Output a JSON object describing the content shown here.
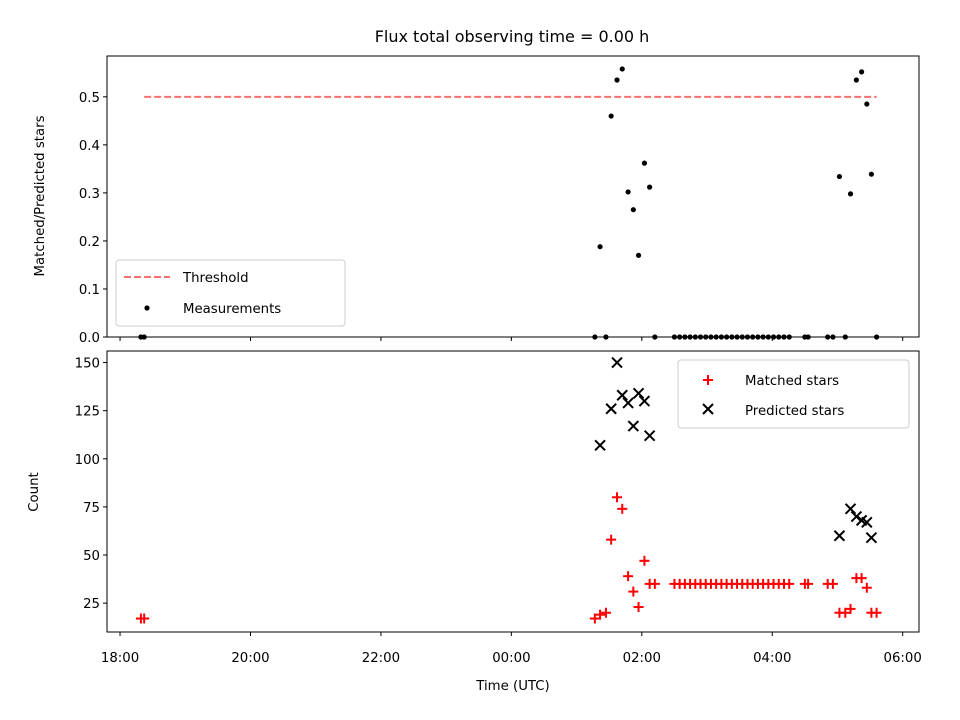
{
  "title": "Flux total observing time = 0.00 h",
  "colors": {
    "threshold": "#f87171",
    "measurements": "#000000",
    "matched": "#ff0000",
    "predicted": "#000000"
  },
  "chart_data": [
    {
      "type": "scatter",
      "ylabel": "Matched/Predicted stars",
      "xlim": [
        -6.2,
        6.25
      ],
      "ylim": [
        0,
        0.585
      ],
      "yticks": [
        0.0,
        0.1,
        0.2,
        0.3,
        0.4,
        0.5
      ],
      "ytick_labels": [
        "0.0",
        "0.1",
        "0.2",
        "0.3",
        "0.4",
        "0.5"
      ],
      "legend_position": "lower-left",
      "series": [
        {
          "name": "Threshold",
          "kind": "dashed-line",
          "x": [
            -5.63,
            5.6
          ],
          "y": [
            0.5,
            0.5
          ]
        },
        {
          "name": "Measurements",
          "kind": "dots",
          "x": [
            -5.68,
            -5.63,
            1.28,
            1.36,
            1.45,
            1.53,
            1.62,
            1.7,
            1.79,
            1.87,
            1.95,
            2.04,
            2.12,
            2.2,
            2.5,
            2.58,
            2.66,
            2.74,
            2.82,
            2.9,
            2.98,
            3.06,
            3.14,
            3.22,
            3.3,
            3.38,
            3.46,
            3.54,
            3.62,
            3.7,
            3.78,
            3.86,
            3.94,
            4.02,
            4.1,
            4.18,
            4.26,
            4.5,
            4.55,
            4.85,
            4.93,
            5.03,
            5.12,
            5.2,
            5.29,
            5.37,
            5.45,
            5.52,
            5.6
          ],
          "y": [
            0.0,
            0.0,
            0.0,
            0.188,
            0.0,
            0.46,
            0.535,
            0.558,
            0.302,
            0.265,
            0.17,
            0.362,
            0.312,
            0.0,
            0.0,
            0.0,
            0.0,
            0.0,
            0.0,
            0.0,
            0.0,
            0.0,
            0.0,
            0.0,
            0.0,
            0.0,
            0.0,
            0.0,
            0.0,
            0.0,
            0.0,
            0.0,
            0.0,
            0.0,
            0.0,
            0.0,
            0.0,
            0.0,
            0.0,
            0.0,
            0.0,
            0.334,
            0.0,
            0.298,
            0.535,
            0.552,
            0.485,
            0.339,
            0.0
          ]
        }
      ]
    },
    {
      "type": "scatter",
      "ylabel": "Count",
      "xlabel": "Time (UTC)",
      "xlim": [
        -6.2,
        6.25
      ],
      "ylim": [
        10,
        156
      ],
      "yticks": [
        25,
        50,
        75,
        100,
        125,
        150
      ],
      "ytick_labels": [
        "25",
        "50",
        "75",
        "100",
        "125",
        "150"
      ],
      "xticks": [
        -6,
        -4,
        -2,
        0,
        2,
        4,
        6
      ],
      "xtick_labels": [
        "18:00",
        "20:00",
        "22:00",
        "00:00",
        "02:00",
        "04:00",
        "06:00"
      ],
      "legend_position": "upper-right",
      "series": [
        {
          "name": "Matched stars",
          "kind": "plus",
          "x": [
            -5.68,
            -5.63,
            1.28,
            1.36,
            1.45,
            1.53,
            1.62,
            1.7,
            1.79,
            1.87,
            1.95,
            2.04,
            2.12,
            2.2,
            2.5,
            2.58,
            2.66,
            2.74,
            2.82,
            2.9,
            2.98,
            3.06,
            3.14,
            3.22,
            3.3,
            3.38,
            3.46,
            3.54,
            3.62,
            3.7,
            3.78,
            3.86,
            3.94,
            4.02,
            4.1,
            4.18,
            4.26,
            4.5,
            4.55,
            4.85,
            4.93,
            5.03,
            5.12,
            5.2,
            5.29,
            5.37,
            5.45,
            5.52,
            5.6
          ],
          "y": [
            17,
            17,
            17,
            19,
            20,
            58,
            80,
            74,
            39,
            31,
            23,
            47,
            35,
            35,
            35,
            35,
            35,
            35,
            35,
            35,
            35,
            35,
            35,
            35,
            35,
            35,
            35,
            35,
            35,
            35,
            35,
            35,
            35,
            35,
            35,
            35,
            35,
            35,
            35,
            35,
            35,
            20,
            20,
            22,
            38,
            38,
            33,
            20,
            20
          ]
        },
        {
          "name": "Predicted stars",
          "kind": "x",
          "x": [
            1.36,
            1.53,
            1.62,
            1.7,
            1.79,
            1.87,
            1.95,
            2.04,
            2.12,
            5.03,
            5.2,
            5.29,
            5.37,
            5.45,
            5.52
          ],
          "y": [
            107,
            126,
            150,
            133,
            129,
            117,
            134,
            130,
            112,
            60,
            74,
            70,
            68,
            67,
            59
          ]
        }
      ]
    }
  ]
}
